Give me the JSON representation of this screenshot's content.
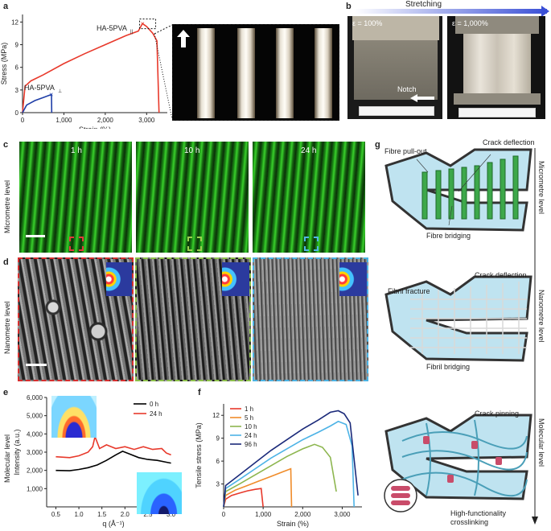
{
  "panels": {
    "a": "a",
    "b": "b",
    "c": "c",
    "d": "d",
    "e": "e",
    "f": "f",
    "g": "g"
  },
  "panel_a": {
    "ylabel": "Stress (MPa)",
    "xlabel": "Strain (%)",
    "yticks": [
      "0",
      "3",
      "6",
      "9",
      "12"
    ],
    "xticks": [
      "0",
      "1,000",
      "2,000",
      "3,000"
    ],
    "label_parallel": "HA-5PVA",
    "label_parallel_sub": "||",
    "label_perp": "HA-5PVA",
    "label_perp_sub": "⊥"
  },
  "panel_b": {
    "header": "Stretching",
    "eps1": "ε = 100%",
    "eps2": "ε = 1,000%",
    "notch": "Notch"
  },
  "panel_c": {
    "side_label": "Micrometre level",
    "times": [
      "1 h",
      "10 h",
      "24 h"
    ]
  },
  "panel_d": {
    "side_label": "Nanometre level"
  },
  "panel_e": {
    "side_label": "Molecular level",
    "ylabel": "Intensity (a.u.)",
    "xlabel": "q (Å⁻¹)",
    "yticks": [
      "1,000",
      "2,000",
      "3,000",
      "4,000",
      "5,000",
      "6,000"
    ],
    "xticks": [
      "0.5",
      "1.0",
      "1.5",
      "2.0",
      "2.5",
      "3.0"
    ],
    "legend": [
      "0 h",
      "24 h"
    ]
  },
  "panel_f": {
    "ylabel": "Tensile stress (MPa)",
    "xlabel": "Strain (%)",
    "yticks": [
      "3",
      "6",
      "9",
      "12"
    ],
    "xticks": [
      "0",
      "1,000",
      "2,000",
      "3,000"
    ],
    "legend": [
      "1 h",
      "5 h",
      "10 h",
      "24 h",
      "96 h"
    ]
  },
  "panel_g": {
    "top_labels": [
      "Fibre pull-out",
      "Crack deflection",
      "Fibre bridging"
    ],
    "mid_labels": [
      "Crack deflection",
      "Fibril fracture",
      "Fibril bridging"
    ],
    "bot_labels": [
      "Crack pinning",
      "High-functionality crosslinking"
    ],
    "levels": [
      "Micrometre level",
      "Nanometre level",
      "Molecular level"
    ]
  },
  "chart_data": [
    {
      "type": "line",
      "title": "",
      "xlabel": "Strain (%)",
      "ylabel": "Stress (MPa)",
      "xlim": [
        0,
        3500
      ],
      "ylim": [
        0,
        13
      ],
      "series": [
        {
          "name": "HA-5PVA||",
          "color": "#e8392b",
          "x": [
            0,
            60,
            200,
            500,
            1000,
            1500,
            2000,
            2500,
            2800,
            2900,
            3000,
            3150,
            3250,
            3300
          ],
          "y": [
            0,
            3.5,
            4.2,
            5.0,
            6.5,
            7.8,
            9.0,
            10.2,
            10.8,
            11.8,
            11.4,
            10.5,
            9.5,
            0
          ]
        },
        {
          "name": "HA-5PVA⊥",
          "color": "#1f3ea8",
          "x": [
            0,
            100,
            300,
            500,
            650,
            700,
            705
          ],
          "y": [
            0,
            1.0,
            1.6,
            2.0,
            2.3,
            2.4,
            0
          ]
        }
      ]
    },
    {
      "type": "line",
      "title": "",
      "xlabel": "q (Å⁻¹)",
      "ylabel": "Intensity (a.u.)",
      "xlim": [
        0.3,
        3.2
      ],
      "ylim": [
        0,
        6000
      ],
      "series": [
        {
          "name": "0 h",
          "color": "#000000",
          "x": [
            0.5,
            0.8,
            1.0,
            1.2,
            1.4,
            1.6,
            1.8,
            1.95,
            2.1,
            2.3,
            2.5,
            2.7,
            2.9,
            3.0
          ],
          "y": [
            2000,
            1980,
            2050,
            2150,
            2300,
            2550,
            2850,
            3050,
            2900,
            2700,
            2600,
            2550,
            2450,
            2400
          ]
        },
        {
          "name": "24 h",
          "color": "#e8392b",
          "x": [
            0.5,
            0.8,
            1.0,
            1.2,
            1.3,
            1.35,
            1.45,
            1.6,
            1.8,
            2.0,
            2.2,
            2.4,
            2.6,
            2.8,
            2.9,
            3.0
          ],
          "y": [
            2750,
            2700,
            2800,
            3000,
            3300,
            3850,
            3200,
            3400,
            3200,
            3300,
            3150,
            3300,
            3150,
            3200,
            2950,
            2850
          ]
        }
      ]
    },
    {
      "type": "line",
      "title": "",
      "xlabel": "Strain (%)",
      "ylabel": "Tensile stress (MPa)",
      "xlim": [
        0,
        3500
      ],
      "ylim": [
        0,
        13.5
      ],
      "series": [
        {
          "name": "1 h",
          "color": "#e8392b",
          "x": [
            0,
            50,
            200,
            400,
            600,
            800,
            950,
            1000
          ],
          "y": [
            0,
            1.0,
            1.5,
            1.8,
            2.1,
            2.3,
            2.4,
            0
          ]
        },
        {
          "name": "5 h",
          "color": "#f08c2a",
          "x": [
            0,
            50,
            300,
            600,
            900,
            1200,
            1500,
            1700,
            1720
          ],
          "y": [
            0,
            1.5,
            2.2,
            2.8,
            3.4,
            4.0,
            4.6,
            5.0,
            0
          ]
        },
        {
          "name": "10 h",
          "color": "#8db64f",
          "x": [
            0,
            50,
            400,
            800,
            1200,
            1600,
            2000,
            2300,
            2500,
            2700,
            2850
          ],
          "y": [
            0,
            2.0,
            3.0,
            4.2,
            5.4,
            6.6,
            7.6,
            8.2,
            7.8,
            6.5,
            2.0
          ]
        },
        {
          "name": "24 h",
          "color": "#4db3e6",
          "x": [
            0,
            50,
            400,
            800,
            1200,
            1600,
            2000,
            2400,
            2700,
            2900,
            3100,
            3250,
            3300
          ],
          "y": [
            0,
            2.4,
            3.6,
            5.0,
            6.4,
            7.6,
            8.8,
            9.8,
            10.6,
            11.2,
            10.8,
            8.0,
            0
          ]
        },
        {
          "name": "96 h",
          "color": "#1b2a7a",
          "x": [
            0,
            50,
            400,
            800,
            1200,
            1600,
            2000,
            2400,
            2700,
            2900,
            3050,
            3200,
            3400
          ],
          "y": [
            0,
            2.8,
            4.2,
            5.8,
            7.4,
            8.8,
            10.2,
            11.4,
            12.4,
            12.6,
            12.2,
            11.0,
            1.5
          ]
        }
      ]
    }
  ]
}
